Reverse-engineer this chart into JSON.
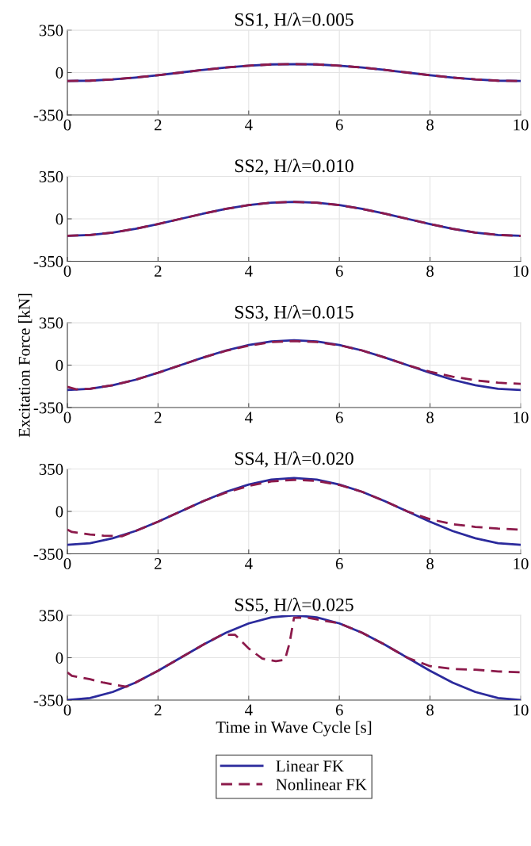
{
  "chart_data": [
    {
      "type": "line",
      "title": "SS1, H/λ=0.005",
      "xlim": [
        0,
        10
      ],
      "xticks": [
        0,
        2,
        4,
        6,
        8,
        10
      ],
      "ylim": [
        -350,
        350
      ],
      "yticks": [
        -350,
        0,
        350
      ],
      "grid": true,
      "x": [
        0,
        0.5,
        1,
        1.5,
        2,
        2.5,
        3,
        3.5,
        4,
        4.5,
        5,
        5.5,
        6,
        6.5,
        7,
        7.5,
        8,
        8.5,
        9,
        9.5,
        10
      ],
      "series": [
        {
          "color": "#2b2a9c",
          "line_style": "solid",
          "values": [
            -70,
            -67,
            -57,
            -41,
            -22,
            0,
            22,
            41,
            57,
            67,
            70,
            67,
            57,
            41,
            22,
            0,
            -22,
            -41,
            -57,
            -67,
            -70
          ]
        },
        {
          "color": "#8c1a4b",
          "line_style": "dashed",
          "values": [
            -70,
            -67,
            -57,
            -41,
            -22,
            0,
            22,
            41,
            57,
            67,
            70,
            67,
            57,
            41,
            22,
            0,
            -22,
            -41,
            -57,
            -67,
            -70
          ]
        }
      ]
    },
    {
      "type": "line",
      "title": "SS2, H/λ=0.010",
      "xlim": [
        0,
        10
      ],
      "xticks": [
        0,
        2,
        4,
        6,
        8,
        10
      ],
      "ylim": [
        -350,
        350
      ],
      "yticks": [
        -350,
        0,
        350
      ],
      "grid": true,
      "x": [
        0,
        0.5,
        1,
        1.5,
        2,
        2.5,
        3,
        3.5,
        4,
        4.5,
        5,
        5.5,
        6,
        6.5,
        7,
        7.5,
        8,
        8.5,
        9,
        9.5,
        10
      ],
      "series": [
        {
          "color": "#2b2a9c",
          "line_style": "solid",
          "values": [
            -140,
            -133,
            -113,
            -82,
            -43,
            0,
            43,
            82,
            113,
            133,
            140,
            133,
            113,
            82,
            43,
            0,
            -43,
            -82,
            -113,
            -133,
            -140
          ]
        },
        {
          "color": "#8c1a4b",
          "line_style": "dashed",
          "values": [
            -140,
            -133,
            -113,
            -82,
            -43,
            0,
            43,
            82,
            113,
            133,
            140,
            133,
            113,
            82,
            43,
            0,
            -43,
            -82,
            -113,
            -133,
            -140
          ]
        }
      ]
    },
    {
      "type": "line",
      "title": "SS3, H/λ=0.015",
      "ylabel": "Excitation Force [kN]",
      "xlim": [
        0,
        10
      ],
      "xticks": [
        0,
        2,
        4,
        6,
        8,
        10
      ],
      "ylim": [
        -350,
        350
      ],
      "yticks": [
        -350,
        0,
        350
      ],
      "grid": true,
      "x": [
        0,
        0.5,
        1,
        1.5,
        2,
        2.5,
        3,
        3.5,
        4,
        4.5,
        5,
        5.5,
        6,
        6.5,
        7,
        7.5,
        8,
        8.5,
        9,
        9.5,
        10
      ],
      "series": [
        {
          "color": "#2b2a9c",
          "line_style": "solid",
          "values": [
            -205,
            -195,
            -166,
            -121,
            -63,
            0,
            63,
            121,
            166,
            195,
            205,
            195,
            166,
            121,
            63,
            0,
            -63,
            -121,
            -166,
            -195,
            -205
          ]
        },
        {
          "color": "#8c1a4b",
          "line_style": "dashed",
          "x": [
            0,
            0.2,
            0.5,
            1,
            1.5,
            2,
            2.5,
            3,
            3.5,
            4,
            4.5,
            5,
            5.5,
            6,
            6.5,
            7,
            7.5,
            8,
            8.5,
            9,
            9.5,
            10
          ],
          "values": [
            -178,
            -200,
            -195,
            -166,
            -121,
            -63,
            0,
            63,
            118,
            160,
            190,
            198,
            190,
            164,
            121,
            63,
            0,
            -55,
            -95,
            -125,
            -145,
            -155
          ]
        }
      ]
    },
    {
      "type": "line",
      "title": "SS4, H/λ=0.020",
      "xlim": [
        0,
        10
      ],
      "xticks": [
        0,
        2,
        4,
        6,
        8,
        10
      ],
      "ylim": [
        -350,
        350
      ],
      "yticks": [
        -350,
        0,
        350
      ],
      "grid": true,
      "x": [
        0,
        0.5,
        1,
        1.5,
        2,
        2.5,
        3,
        3.5,
        4,
        4.5,
        5,
        5.5,
        6,
        6.5,
        7,
        7.5,
        8,
        8.5,
        9,
        9.5,
        10
      ],
      "series": [
        {
          "color": "#2b2a9c",
          "line_style": "solid",
          "values": [
            -275,
            -262,
            -222,
            -162,
            -85,
            0,
            85,
            162,
            222,
            262,
            275,
            262,
            222,
            162,
            85,
            0,
            -85,
            -162,
            -222,
            -262,
            -275
          ]
        },
        {
          "color": "#8c1a4b",
          "line_style": "dashed",
          "x": [
            0,
            0.1,
            0.5,
            0.8,
            1.2,
            1.5,
            2,
            2.5,
            3,
            3.5,
            4,
            4.5,
            5,
            5.5,
            6,
            6.5,
            7,
            7.5,
            8,
            8.5,
            9,
            9.5,
            10
          ],
          "values": [
            -150,
            -170,
            -190,
            -200,
            -205,
            -162,
            -85,
            0,
            85,
            155,
            210,
            248,
            260,
            252,
            218,
            162,
            85,
            0,
            -65,
            -105,
            -128,
            -142,
            -150
          ]
        }
      ]
    },
    {
      "type": "line",
      "title": "SS5, H/λ=0.025",
      "xlabel": "Time in Wave Cycle [s]",
      "xlim": [
        0,
        10
      ],
      "xticks": [
        0,
        2,
        4,
        6,
        8,
        10
      ],
      "ylim": [
        -350,
        350
      ],
      "yticks": [
        -350,
        0,
        350
      ],
      "grid": true,
      "legend": "bottom",
      "x": [
        0,
        0.5,
        1,
        1.5,
        2,
        2.5,
        3,
        3.5,
        4,
        4.5,
        5,
        5.5,
        6,
        6.5,
        7,
        7.5,
        8,
        8.5,
        9,
        9.5,
        10
      ],
      "series": [
        {
          "name": "Linear FK",
          "color": "#2b2a9c",
          "line_style": "solid",
          "values": [
            -350,
            -333,
            -283,
            -206,
            -108,
            0,
            108,
            206,
            283,
            333,
            350,
            333,
            283,
            206,
            108,
            0,
            -108,
            -206,
            -283,
            -333,
            -350
          ]
        },
        {
          "name": "Nonlinear FK",
          "color": "#8c1a4b",
          "line_style": "dashed",
          "x": [
            0,
            0.1,
            0.5,
            0.8,
            1.3,
            1.5,
            2,
            2.5,
            3,
            3.4,
            3.7,
            4,
            4.3,
            4.6,
            4.8,
            4.9,
            5,
            5.3,
            6,
            6.5,
            7,
            7.5,
            7.9,
            8,
            8.5,
            9,
            9.5,
            10
          ],
          "values": [
            -121,
            -150,
            -178,
            -206,
            -240,
            -206,
            -108,
            0,
            108,
            188,
            189,
            76,
            -8,
            -28,
            -17,
            119,
            330,
            330,
            283,
            206,
            108,
            0,
            -56,
            -70,
            -93,
            -99,
            -113,
            -121
          ]
        }
      ]
    }
  ]
}
